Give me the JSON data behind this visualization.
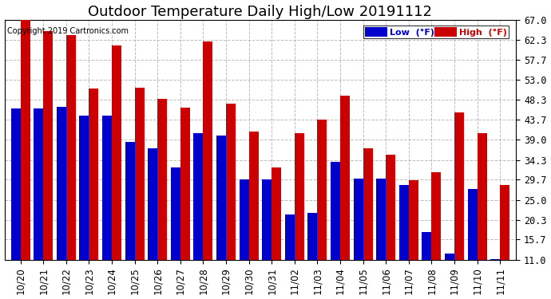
{
  "title": "Outdoor Temperature Daily High/Low 20191112",
  "copyright": "Copyright 2019 Cartronics.com",
  "legend_low": "Low  (°F)",
  "legend_high": "High  (°F)",
  "categories": [
    "10/20",
    "10/21",
    "10/22",
    "10/23",
    "10/24",
    "10/25",
    "10/26",
    "10/27",
    "10/28",
    "10/29",
    "10/30",
    "10/31",
    "11/02",
    "11/03",
    "11/04",
    "11/05",
    "11/06",
    "11/07",
    "11/08",
    "11/09",
    "11/10",
    "11/11"
  ],
  "low_vals": [
    46.4,
    46.4,
    46.8,
    44.6,
    44.6,
    38.5,
    37.0,
    32.5,
    40.5,
    40.0,
    29.7,
    29.7,
    21.5,
    22.0,
    33.8,
    30.0,
    30.0,
    28.5,
    17.5,
    12.5,
    27.5,
    11.2
  ],
  "high_vals": [
    67.0,
    64.4,
    63.5,
    51.0,
    61.0,
    51.2,
    48.5,
    46.5,
    62.0,
    47.5,
    41.0,
    32.5,
    40.5,
    43.7,
    49.3,
    37.0,
    35.5,
    29.5,
    31.5,
    45.5,
    40.5,
    28.5
  ],
  "low_color": "#0000cc",
  "high_color": "#cc0000",
  "bg_color": "#ffffff",
  "plot_bg_color": "#ffffff",
  "grid_color": "#aaaaaa",
  "title_fontsize": 13,
  "tick_fontsize": 8.5,
  "yticks": [
    11.0,
    15.7,
    20.3,
    25.0,
    29.7,
    34.3,
    39.0,
    43.7,
    48.3,
    53.0,
    57.7,
    62.3,
    67.0
  ],
  "ymin": 11.0,
  "ymax": 67.0,
  "bar_width": 0.42
}
